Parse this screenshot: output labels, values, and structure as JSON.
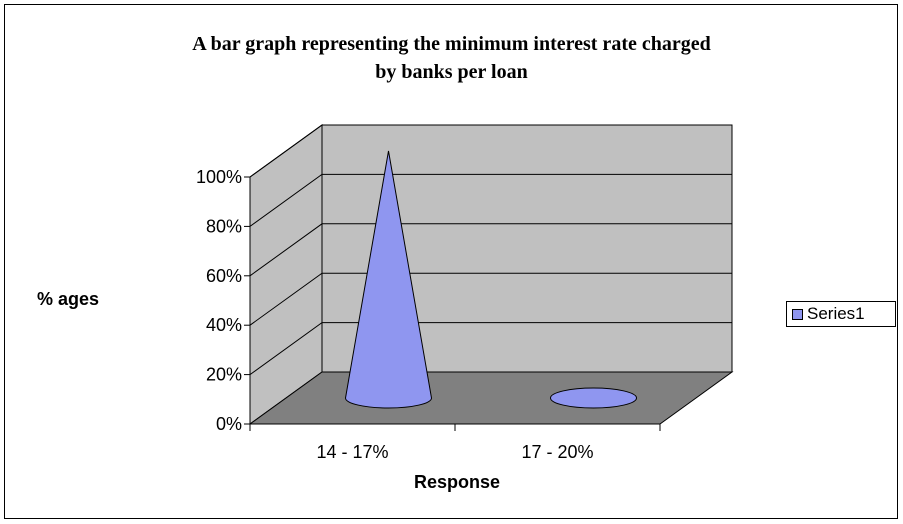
{
  "chart_data": {
    "type": "bar",
    "title": [
      "A bar graph representing the minimum interest  rate charged",
      "by banks per loan"
    ],
    "xlabel": "Response",
    "ylabel": "% ages",
    "categories": [
      "14 - 17%",
      "17 - 20%"
    ],
    "series": [
      {
        "name": "Series1",
        "values": [
          100,
          0
        ],
        "color": "#8f96f0"
      }
    ],
    "ylim": [
      0,
      100
    ],
    "yticks": [
      "0%",
      "20%",
      "40%",
      "60%",
      "80%",
      "100%"
    ],
    "legend_position": "right",
    "grid": true,
    "style": "3d-cone",
    "wall_color": "#c0c0c0",
    "floor_color": "#808080"
  }
}
